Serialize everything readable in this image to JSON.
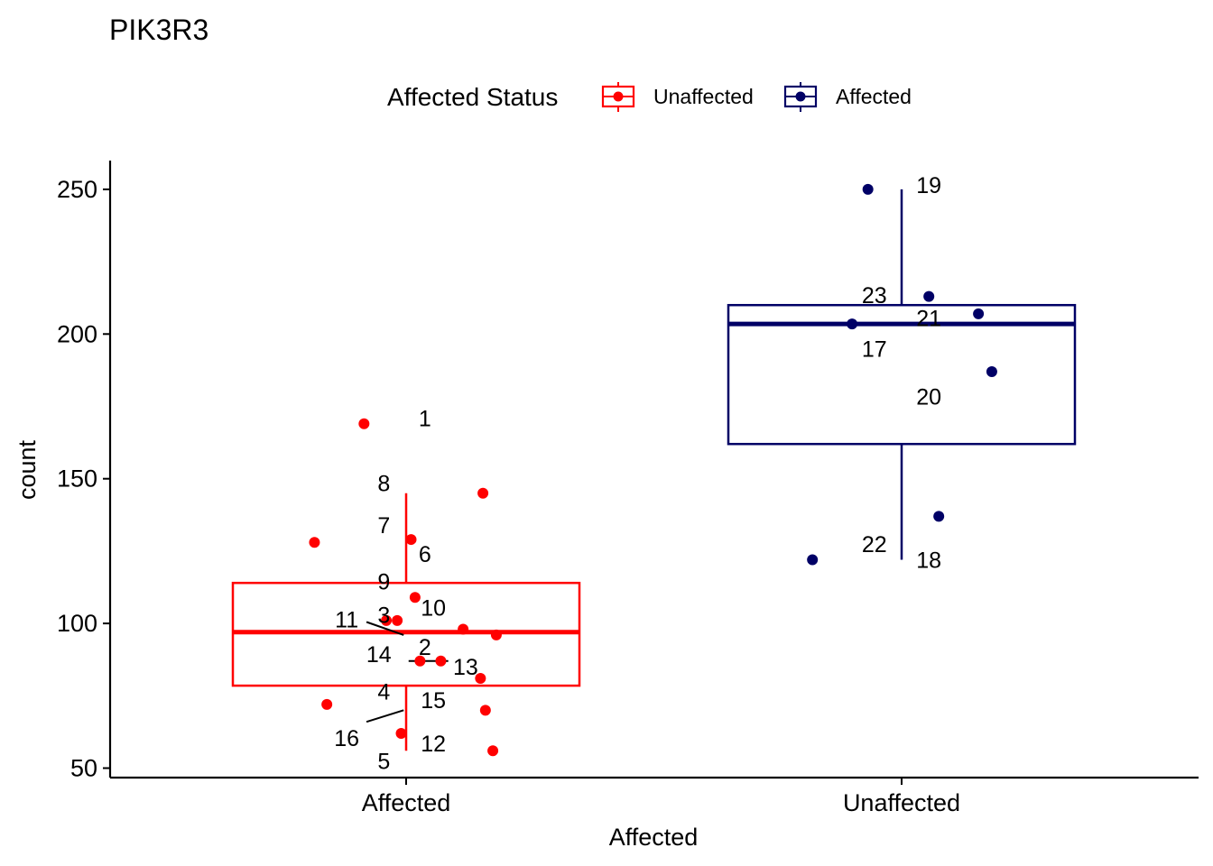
{
  "chart_data": {
    "type": "box",
    "title": "PIK3R3",
    "xlabel": "Affected",
    "ylabel": "count",
    "ylim": [
      47,
      260
    ],
    "yticks": [
      50,
      100,
      150,
      200,
      250
    ],
    "categories": [
      "Affected",
      "Unaffected"
    ],
    "legend": {
      "title": "Affected Status",
      "position": "top",
      "entries": [
        {
          "label": "Unaffected",
          "color": "#FF0000"
        },
        {
          "label": "Affected",
          "color": "#000066"
        }
      ]
    },
    "grid": false,
    "boxes": [
      {
        "category": "Affected",
        "color": "#FF0000",
        "lower_whisker": 56,
        "q1": 78.5,
        "median": 97,
        "q3": 114,
        "upper_whisker": 145
      },
      {
        "category": "Unaffected",
        "color": "#000066",
        "lower_whisker": 122,
        "q1": 162,
        "median": 203.5,
        "q3": 210,
        "upper_whisker": 250
      }
    ],
    "points": [
      {
        "label": "1",
        "category": "Affected",
        "jitter": -0.085,
        "y": 169,
        "color": "#FF0000",
        "lx": 0.038,
        "ly": 171
      },
      {
        "label": "2",
        "category": "Affected",
        "jitter": 0.028,
        "y": 87,
        "color": "#FF0000",
        "lx": 0.038,
        "ly": 92
      },
      {
        "label": "3",
        "category": "Affected",
        "jitter": -0.018,
        "y": 101,
        "color": "#FF0000",
        "lx": -0.045,
        "ly": 103
      },
      {
        "label": "4",
        "category": "Affected",
        "jitter": -0.16,
        "y": 72,
        "color": "#FF0000",
        "lx": -0.045,
        "ly": 76.5
      },
      {
        "label": "5",
        "category": "Affected",
        "jitter": 0.175,
        "y": 56,
        "color": "#FF0000",
        "lx": -0.045,
        "ly": 52.5
      },
      {
        "label": "6",
        "category": "Affected",
        "jitter": 0.01,
        "y": 129,
        "color": "#FF0000",
        "lx": 0.038,
        "ly": 124
      },
      {
        "label": "7",
        "category": "Affected",
        "jitter": -0.185,
        "y": 128,
        "color": "#FF0000",
        "lx": -0.045,
        "ly": 134
      },
      {
        "label": "8",
        "category": "Affected",
        "jitter": 0.155,
        "y": 145,
        "color": "#FF0000",
        "lx": -0.045,
        "ly": 148.5
      },
      {
        "label": "9",
        "category": "Affected",
        "jitter": 0.182,
        "y": 96,
        "color": "#FF0000",
        "lx": -0.045,
        "ly": 114.5
      },
      {
        "label": "10",
        "category": "Affected",
        "jitter": 0.018,
        "y": 109,
        "color": "#FF0000",
        "lx": 0.055,
        "ly": 105.5
      },
      {
        "label": "11",
        "category": "Affected",
        "jitter": -0.04,
        "y": 101,
        "color": "#FF0000",
        "lx": -0.12,
        "ly": 101.5,
        "line": [
          [
            -0.08,
            100.5
          ],
          [
            -0.005,
            96
          ]
        ]
      },
      {
        "label": "12",
        "category": "Affected",
        "jitter": 0.16,
        "y": 70,
        "color": "#FF0000",
        "lx": 0.055,
        "ly": 58.5
      },
      {
        "label": "13",
        "category": "Affected",
        "jitter": 0.07,
        "y": 87,
        "color": "#FF0000",
        "lx": 0.12,
        "ly": 85,
        "line": [
          [
            0.005,
            87
          ],
          [
            0.085,
            87
          ]
        ]
      },
      {
        "label": "14",
        "category": "Affected",
        "jitter": -0.01,
        "y": 62,
        "color": "#FF0000",
        "lx": -0.055,
        "ly": 89.5
      },
      {
        "label": "15",
        "category": "Affected",
        "jitter": 0.115,
        "y": 98,
        "color": "#FF0000",
        "lx": 0.055,
        "ly": 73.5
      },
      {
        "label": "16",
        "category": "Affected",
        "jitter": 0.15,
        "y": 81,
        "color": "#FF0000",
        "lx": -0.12,
        "ly": 60.5,
        "line": [
          [
            -0.08,
            66
          ],
          [
            -0.005,
            70
          ]
        ]
      },
      {
        "label": "17",
        "category": "Unaffected",
        "jitter": -0.1,
        "y": 203.5,
        "color": "#000066",
        "lx": -0.055,
        "ly": 195
      },
      {
        "label": "18",
        "category": "Unaffected",
        "jitter": 0.075,
        "y": 137,
        "color": "#000066",
        "lx": 0.055,
        "ly": 122
      },
      {
        "label": "19",
        "category": "Unaffected",
        "jitter": -0.068,
        "y": 250,
        "color": "#000066",
        "lx": 0.055,
        "ly": 251.5
      },
      {
        "label": "20",
        "category": "Unaffected",
        "jitter": 0.182,
        "y": 187,
        "color": "#000066",
        "lx": 0.055,
        "ly": 178.5
      },
      {
        "label": "21",
        "category": "Unaffected",
        "jitter": 0.155,
        "y": 207,
        "color": "#000066",
        "lx": 0.055,
        "ly": 205.5
      },
      {
        "label": "22",
        "category": "Unaffected",
        "jitter": -0.18,
        "y": 122,
        "color": "#000066",
        "lx": -0.055,
        "ly": 127.5
      },
      {
        "label": "23",
        "category": "Unaffected",
        "jitter": 0.055,
        "y": 213,
        "color": "#000066",
        "lx": -0.055,
        "ly": 213.5
      }
    ]
  }
}
